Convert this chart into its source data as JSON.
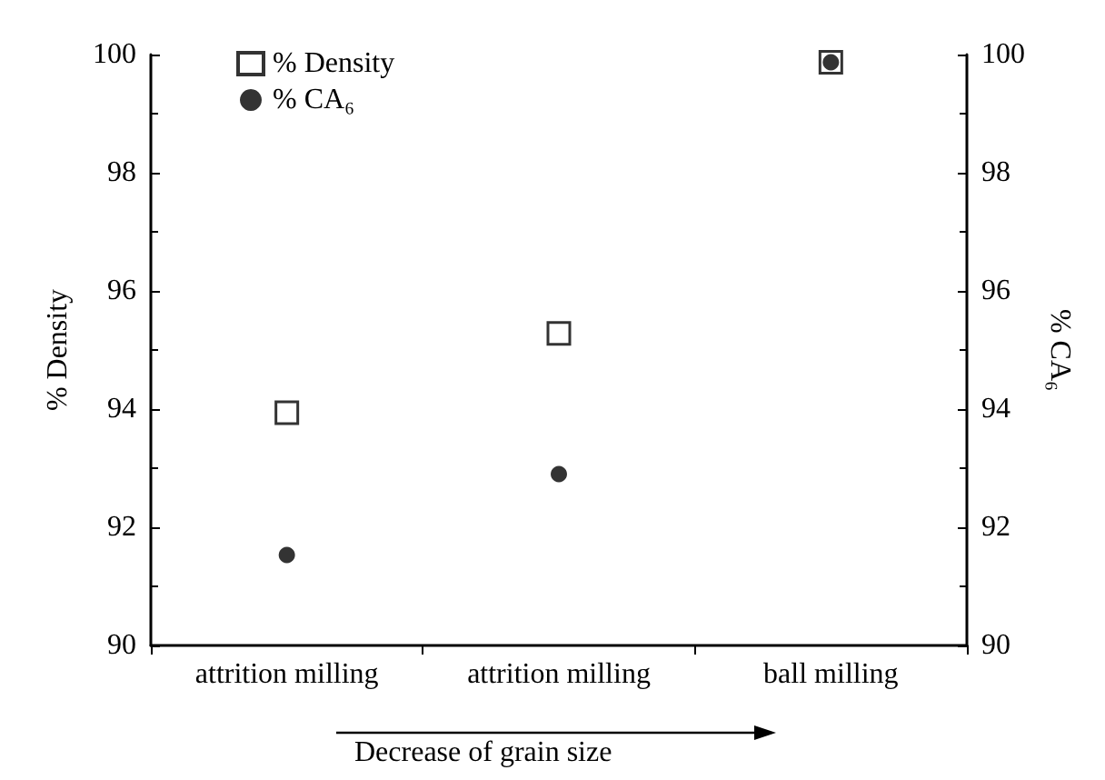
{
  "chart_data": {
    "type": "scatter",
    "categories": [
      "attrition milling",
      "attrition milling",
      "ball milling"
    ],
    "series": [
      {
        "name": "% Density",
        "color": "#000000",
        "marker": "square",
        "values": [
          93.94,
          95.28,
          99.87
        ]
      },
      {
        "name": "% CA₆",
        "color": "#000000",
        "marker": "circle",
        "axis": "y2",
        "values": [
          91.53,
          92.9,
          99.87
        ]
      }
    ],
    "ylabel": "% Density",
    "y2label": "% CA₆",
    "ylim": [
      90,
      100
    ],
    "yticks": [
      90,
      92,
      94,
      96,
      98,
      100
    ],
    "y2lim": [
      90,
      100
    ],
    "y2ticks": [
      90,
      92,
      94,
      96,
      98,
      100
    ],
    "annotations": [
      "Decrease of grain size"
    ],
    "legend": "top left",
    "grid": false
  }
}
